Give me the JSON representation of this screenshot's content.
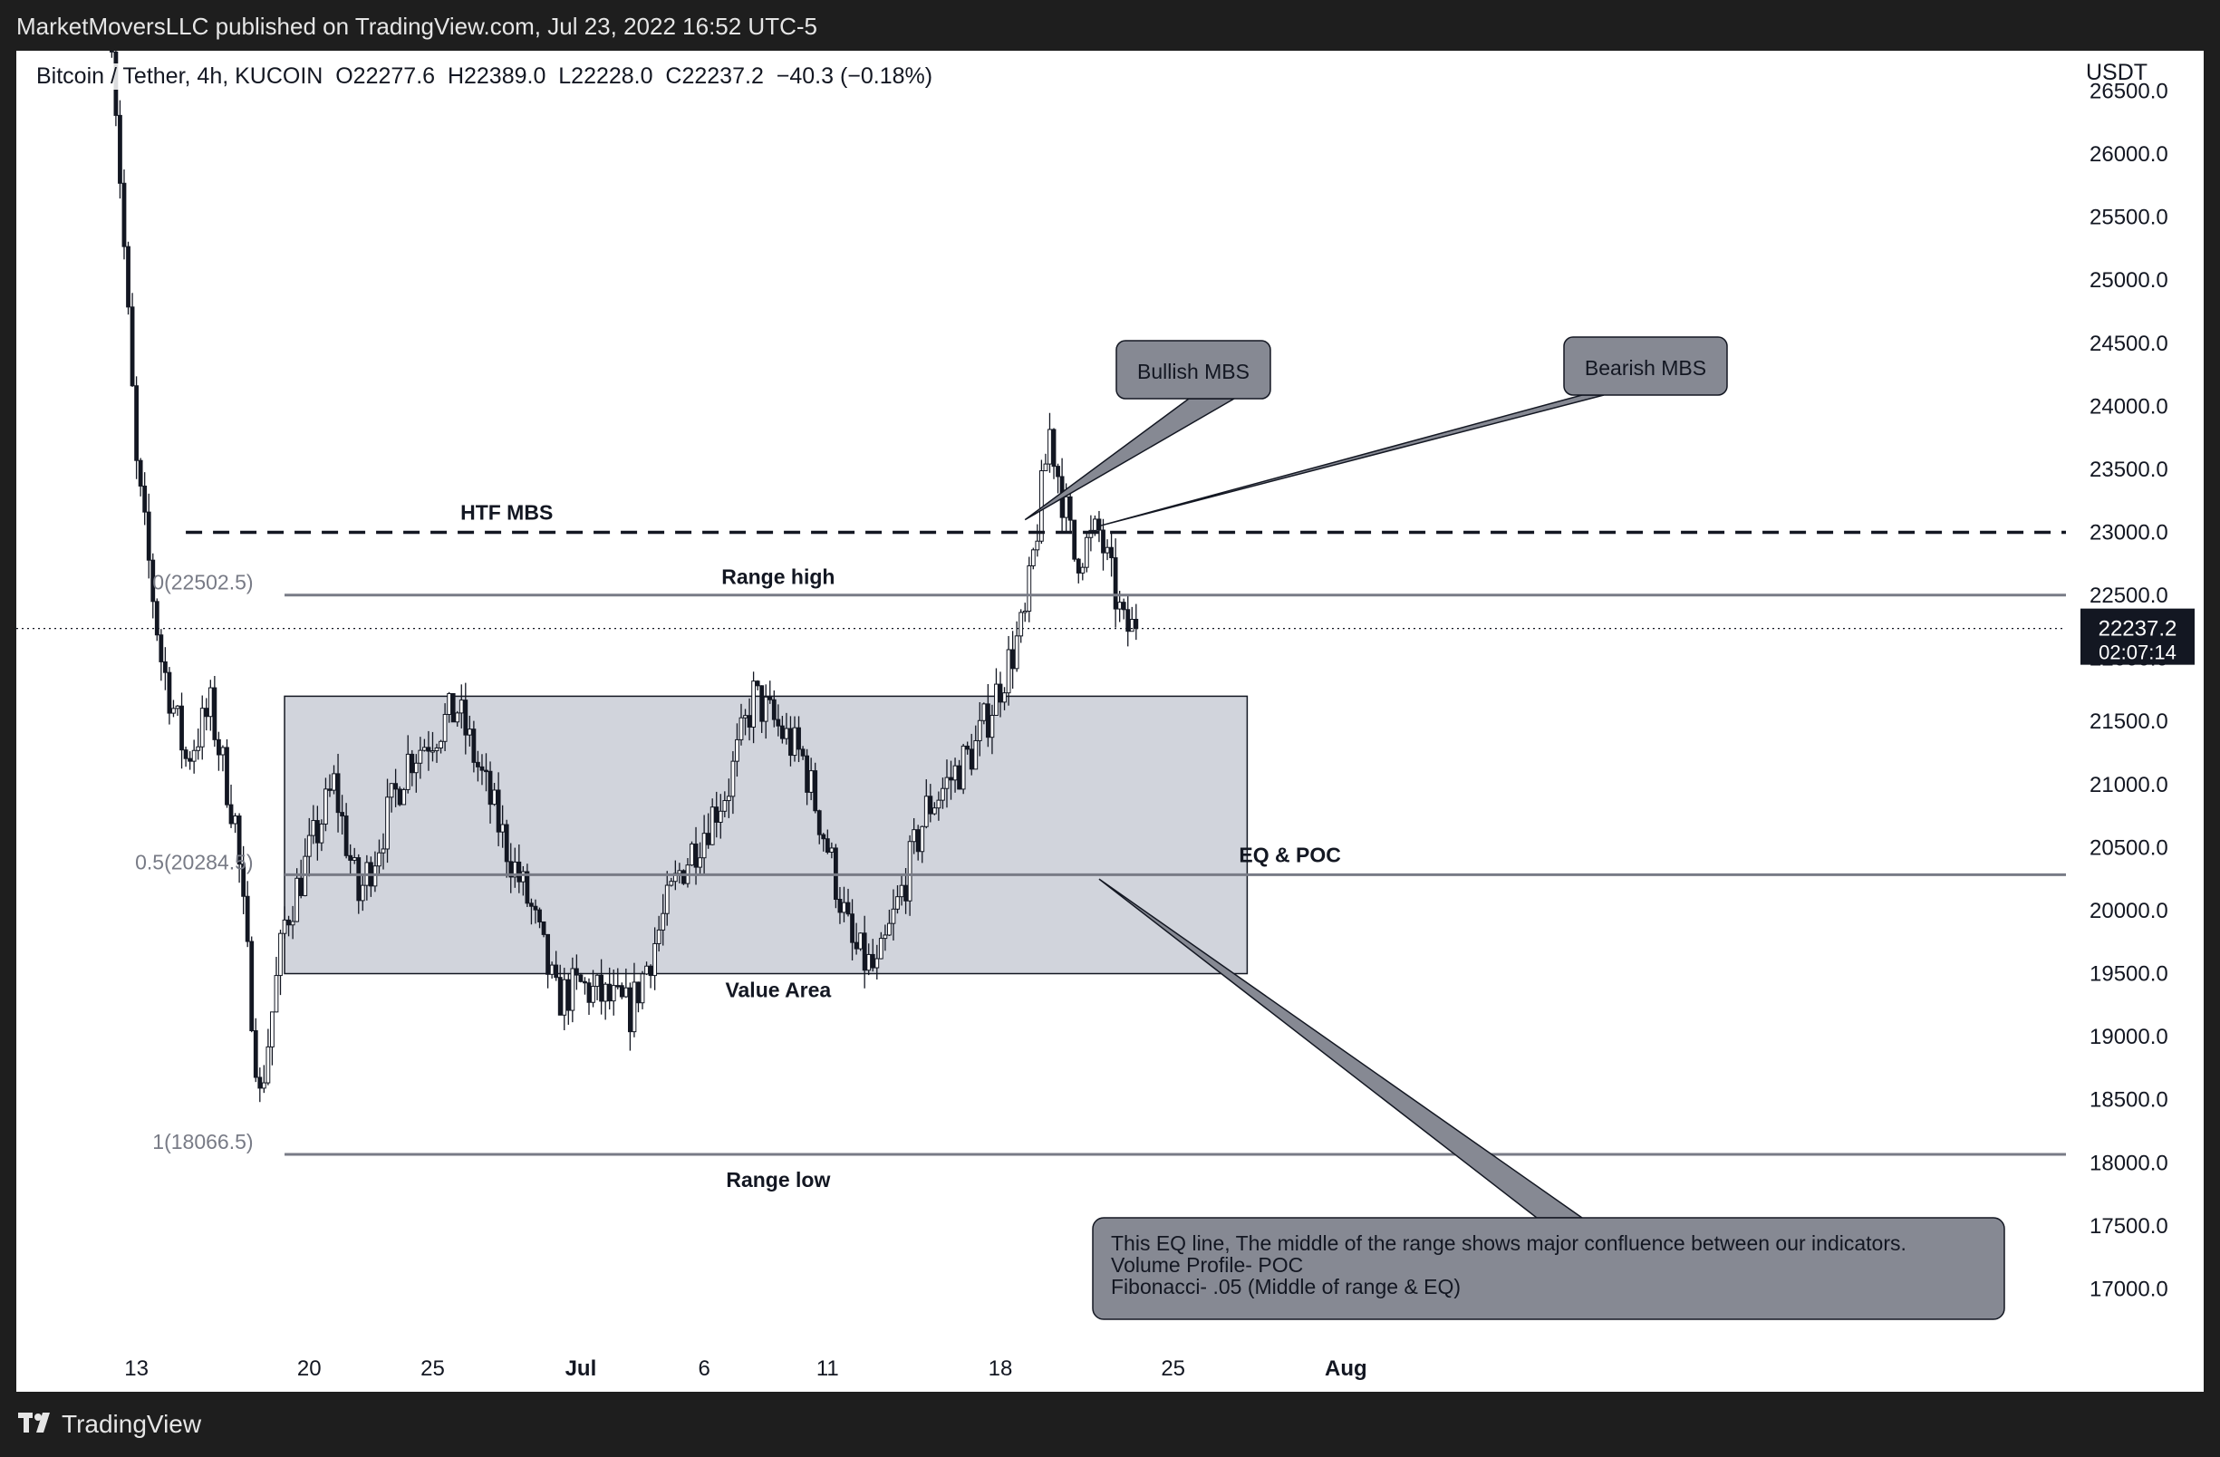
{
  "header": {
    "published": "MarketMoversLLC published on TradingView.com, Jul 23, 2022 16:52 UTC-5"
  },
  "symbol_bar": {
    "text": "Bitcoin / Tether, 4h, KUCOIN  O22277.6  H22389.0  L22228.0  C22237.2  −40.3 (−0.18%)"
  },
  "price_axis": {
    "currency": "USDT",
    "last_price": "22237.2",
    "countdown": "02:07:14"
  },
  "footer": {
    "brand": "TradingView"
  },
  "colors": {
    "background": "#ffffff",
    "candle": "#131722",
    "box_fill": "#d1d4dc",
    "level_line": "#787b86",
    "callout_fill": "#868993"
  },
  "chart_data": {
    "type": "candlestick",
    "title": "",
    "timeframe": "4h",
    "x_axis": {
      "tick_labels": [
        "13",
        "20",
        "25",
        "Jul",
        "6",
        "11",
        "18",
        "25",
        "Aug"
      ],
      "tick_days": [
        13,
        20,
        25,
        31,
        36,
        41,
        48,
        55,
        62
      ],
      "date_range": [
        "2022-06-10",
        "2022-08-07"
      ]
    },
    "y_axis": {
      "range": [
        16500,
        27000
      ],
      "tick_labels": [
        "17000.0",
        "17500.0",
        "18000.0",
        "18500.0",
        "19000.0",
        "19500.0",
        "20000.0",
        "20500.0",
        "21000.0",
        "21500.0",
        "22000.0",
        "22500.0",
        "23000.0",
        "23500.0",
        "24000.0",
        "24500.0",
        "25000.0",
        "25500.0",
        "26000.0",
        "26500.0"
      ]
    },
    "candle_anchor_closes": [
      [
        "2022-06-12",
        27000
      ],
      [
        "2022-06-13",
        23500
      ],
      [
        "2022-06-14",
        22000
      ],
      [
        "2022-06-15",
        21200
      ],
      [
        "2022-06-16",
        21600
      ],
      [
        "2022-06-17",
        20700
      ],
      [
        "2022-06-18",
        18500
      ],
      [
        "2022-06-19",
        19900
      ],
      [
        "2022-06-21",
        21000
      ],
      [
        "2022-06-22",
        20100
      ],
      [
        "2022-06-24",
        21200
      ],
      [
        "2022-06-25",
        21400
      ],
      [
        "2022-06-26",
        21600
      ],
      [
        "2022-06-28",
        20500
      ],
      [
        "2022-06-29",
        20000
      ],
      [
        "2022-06-30",
        19300
      ],
      [
        "2022-07-01",
        19400
      ],
      [
        "2022-07-03",
        19200
      ],
      [
        "2022-07-05",
        20300
      ],
      [
        "2022-07-07",
        21000
      ],
      [
        "2022-07-08",
        21700
      ],
      [
        "2022-07-10",
        21200
      ],
      [
        "2022-07-11",
        20500
      ],
      [
        "2022-07-12",
        19700
      ],
      [
        "2022-07-13",
        19500
      ],
      [
        "2022-07-15",
        20800
      ],
      [
        "2022-07-17",
        21300
      ],
      [
        "2022-07-18",
        21800
      ],
      [
        "2022-07-19",
        22300
      ],
      [
        "2022-07-20",
        23800
      ],
      [
        "2022-07-21",
        22800
      ],
      [
        "2022-07-22",
        23000
      ],
      [
        "2022-07-23",
        22237.2
      ]
    ],
    "levels": [
      {
        "label": "HTF MBS",
        "price": 23000,
        "style": "dashed"
      },
      {
        "label": "Range high",
        "price": 22502.5,
        "style": "solid"
      },
      {
        "label": "EQ & POC",
        "price": 20284.5,
        "style": "solid"
      },
      {
        "label": "Range low",
        "price": 18066.5,
        "style": "solid"
      },
      {
        "label": "",
        "price": 22237.2,
        "style": "dotted"
      }
    ],
    "fib_labels": [
      {
        "text": "0(22502.5)",
        "price": 22502.5
      },
      {
        "text": "0.5(20284.5)",
        "price": 20284.5
      },
      {
        "text": "1(18066.5)",
        "price": 18066.5
      }
    ],
    "value_area": {
      "label": "Value Area",
      "low": 19500,
      "high": 21700,
      "from": "2022-06-19",
      "to": "2022-07-28"
    },
    "callouts": [
      {
        "text": "Bullish MBS",
        "pointer_date": "2022-07-19",
        "pointer_price": 23100
      },
      {
        "text": "Bearish MBS",
        "pointer_date": "2022-07-22",
        "pointer_price": 23050
      },
      {
        "text_lines": [
          "This EQ line, The middle of the range shows major confluence between our indicators.",
          "Volume Profile- POC",
          "Fibonacci- .05 (Middle of range & EQ)"
        ],
        "pointer_date": "2022-07-22",
        "pointer_price": 20250
      }
    ]
  }
}
